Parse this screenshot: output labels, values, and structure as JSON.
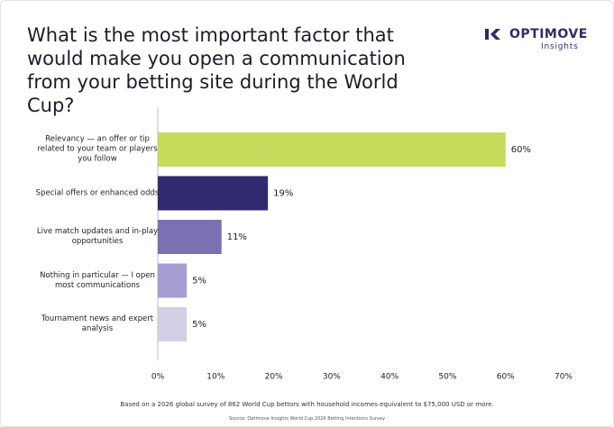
{
  "logo": {
    "brand": "OPTIMOVE",
    "sub": "Insights"
  },
  "chart_data": {
    "type": "bar",
    "orientation": "horizontal",
    "title": "What is the most important factor that would make you open a communication from your betting site during the World Cup?",
    "categories": [
      "Relevancy — an offer or tip related to your team or players you follow",
      "Special offers or enhanced odds",
      "Live match updates and in-play opportunities",
      "Nothing in particular — I open most communications",
      "Tournament news and expert analysis"
    ],
    "values": [
      60,
      19,
      11,
      5,
      5
    ],
    "value_labels": [
      "60%",
      "19%",
      "11%",
      "5%",
      "5%"
    ],
    "colors": [
      "#c5dc5c",
      "#2f2b6e",
      "#7b70b1",
      "#a69dd3",
      "#d3cfe7"
    ],
    "xlim": [
      0,
      70
    ],
    "xticks": [
      {
        "value": 0,
        "label": "0%"
      },
      {
        "value": 10,
        "label": "10%"
      },
      {
        "value": 20,
        "label": "20%"
      },
      {
        "value": 30,
        "label": "30%"
      },
      {
        "value": 40,
        "label": "40%"
      },
      {
        "value": 50,
        "label": "50%"
      },
      {
        "value": 60,
        "label": "60%"
      },
      {
        "value": 70,
        "label": "70%"
      }
    ],
    "grid": false,
    "footnote": "Based on a 2026 global survey of 862 World Cup bettors with household incomes equivalent to $75,000 USD or more.",
    "source": "Source: Optimove Insights World Cup 2026 Betting Intentions Survey"
  }
}
